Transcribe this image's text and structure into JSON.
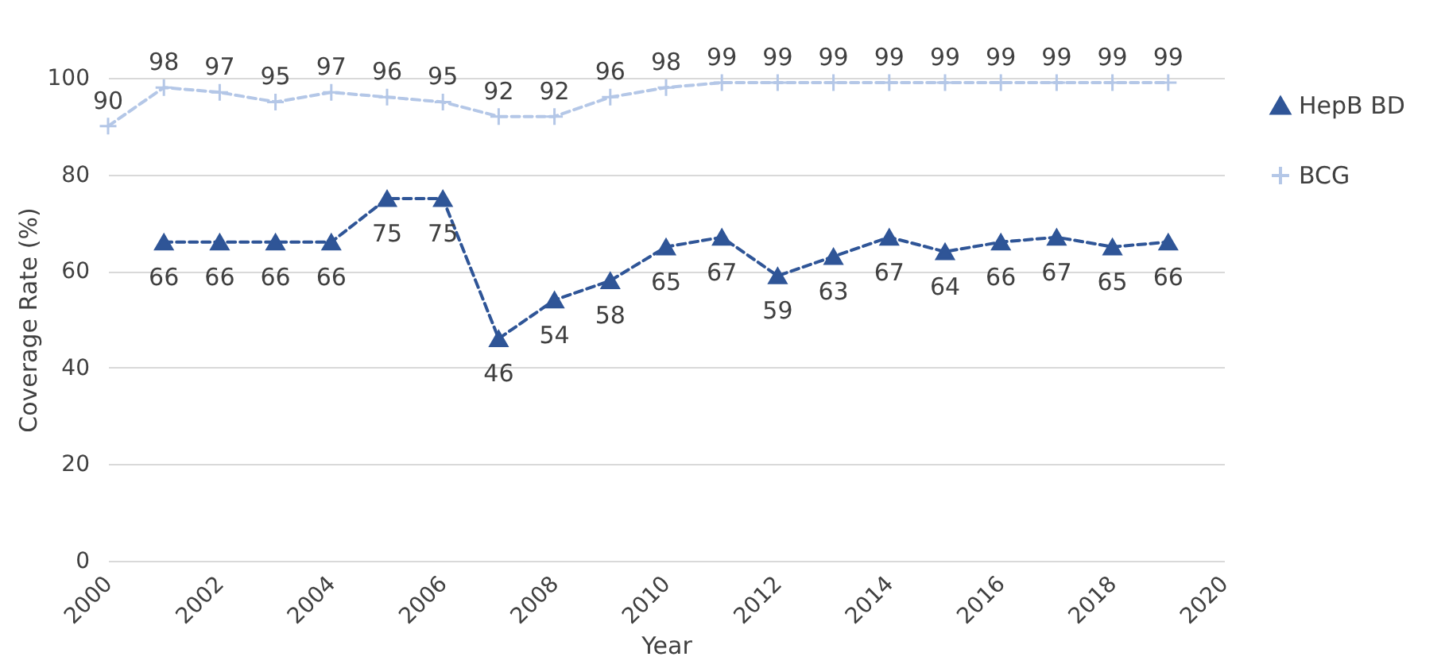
{
  "chart_data": {
    "type": "line",
    "xlabel": "Year",
    "ylabel": "Coverage Rate (%)",
    "x": [
      2000,
      2001,
      2002,
      2003,
      2004,
      2005,
      2006,
      2007,
      2008,
      2009,
      2010,
      2011,
      2012,
      2013,
      2014,
      2015,
      2016,
      2017,
      2018,
      2019
    ],
    "series": [
      {
        "name": "HepB BD",
        "color": "#2f5597",
        "marker": "triangle",
        "values": [
          null,
          66,
          66,
          66,
          66,
          75,
          75,
          46,
          54,
          58,
          65,
          67,
          59,
          63,
          67,
          64,
          66,
          67,
          65,
          66
        ]
      },
      {
        "name": "BCG",
        "color": "#b4c7e7",
        "marker": "cross",
        "values": [
          90,
          98,
          97,
          95,
          97,
          96,
          95,
          92,
          92,
          96,
          98,
          99,
          99,
          99,
          99,
          99,
          99,
          99,
          99,
          99
        ]
      }
    ],
    "xlim": [
      2000,
      2020
    ],
    "xticks": [
      2000,
      2002,
      2004,
      2006,
      2008,
      2010,
      2012,
      2014,
      2016,
      2018,
      2020
    ],
    "ylim": [
      0,
      100
    ],
    "yticks": [
      0,
      20,
      40,
      60,
      80,
      100
    ],
    "grid": "y",
    "legend": "right",
    "line_style": "dashed",
    "data_labels": true
  }
}
